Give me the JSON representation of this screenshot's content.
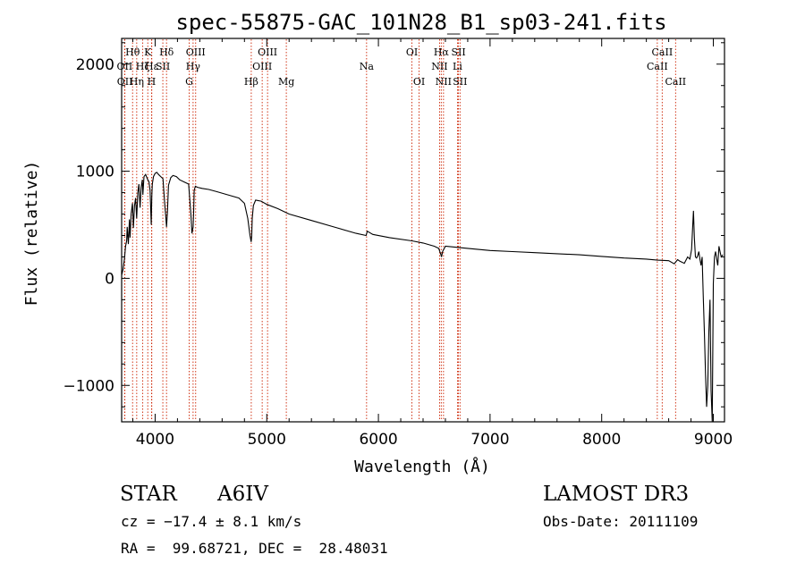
{
  "chart_data": {
    "type": "line",
    "title": "spec-55875-GAC_101N28_B1_sp03-241.fits",
    "xlabel": "Wavelength (Å)",
    "ylabel": "Flux (relative)",
    "xlim": [
      3700,
      9100
    ],
    "ylim": [
      -1340,
      2240
    ],
    "x_ticks": [
      4000,
      5000,
      6000,
      7000,
      8000,
      9000
    ],
    "y_ticks": [
      -1000,
      0,
      1000,
      2000
    ],
    "x_tick_labels": [
      "4000",
      "5000",
      "6000",
      "7000",
      "8000",
      "9000"
    ],
    "y_tick_labels": [
      "−1000",
      "0",
      "1000",
      "2000"
    ],
    "line_color": "#000000",
    "marker_color": "#cc2200",
    "series": [
      {
        "name": "flux",
        "x": [
          3700,
          3712,
          3725,
          3735,
          3745,
          3750,
          3760,
          3770,
          3775,
          3785,
          3797,
          3805,
          3815,
          3825,
          3835,
          3845,
          3855,
          3865,
          3875,
          3885,
          3890,
          3900,
          3915,
          3930,
          3945,
          3955,
          3965,
          3970,
          3975,
          3985,
          4000,
          4015,
          4030,
          4050,
          4070,
          4085,
          4095,
          4102,
          4110,
          4120,
          4140,
          4160,
          4190,
          4220,
          4260,
          4300,
          4320,
          4330,
          4340,
          4345,
          4350,
          4360,
          4380,
          4420,
          4480,
          4550,
          4650,
          4750,
          4800,
          4830,
          4850,
          4860,
          4865,
          4870,
          4880,
          4900,
          4950,
          5000,
          5100,
          5200,
          5400,
          5600,
          5800,
          5890,
          5900,
          5950,
          6100,
          6300,
          6400,
          6500,
          6540,
          6560,
          6565,
          6575,
          6600,
          6700,
          6800,
          7000,
          7200,
          7400,
          7600,
          7800,
          8000,
          8200,
          8400,
          8500,
          8600,
          8650,
          8680,
          8700,
          8740,
          8770,
          8790,
          8805,
          8815,
          8822,
          8830,
          8840,
          8850,
          8860,
          8870,
          8880,
          8890,
          8900,
          8910,
          8920,
          8930,
          8940,
          8950,
          8960,
          8970,
          8980,
          8990,
          9000,
          9010,
          9020,
          9030,
          9040,
          9050,
          9060,
          9070,
          9085
        ],
        "y": [
          30,
          80,
          180,
          300,
          350,
          480,
          320,
          550,
          380,
          600,
          700,
          470,
          680,
          750,
          560,
          800,
          880,
          660,
          850,
          920,
          780,
          950,
          970,
          930,
          900,
          820,
          500,
          760,
          880,
          950,
          980,
          990,
          970,
          950,
          930,
          700,
          580,
          480,
          620,
          870,
          940,
          960,
          950,
          920,
          900,
          880,
          600,
          420,
          480,
          620,
          820,
          860,
          850,
          840,
          830,
          810,
          780,
          750,
          700,
          560,
          400,
          340,
          390,
          560,
          680,
          730,
          720,
          690,
          650,
          600,
          540,
          480,
          420,
          400,
          440,
          410,
          380,
          350,
          330,
          300,
          280,
          220,
          200,
          250,
          300,
          290,
          280,
          260,
          250,
          240,
          230,
          220,
          205,
          190,
          180,
          170,
          165,
          135,
          175,
          160,
          140,
          200,
          180,
          270,
          480,
          630,
          380,
          200,
          190,
          210,
          250,
          180,
          120,
          200,
          -180,
          -500,
          -900,
          -1200,
          -1000,
          -500,
          -200,
          -1050,
          -1340,
          -50,
          200,
          250,
          180,
          120,
          300,
          250,
          200,
          220
        ]
      }
    ],
    "spectral_lines": [
      {
        "label": "Hθ",
        "wavelength": 3798,
        "row": 1
      },
      {
        "label": "OII",
        "wavelength": 3727,
        "row": 2
      },
      {
        "label": "OII",
        "wavelength": 3729,
        "row": 3
      },
      {
        "label": "Hζ",
        "wavelength": 3889,
        "row": 2
      },
      {
        "label": "Hη",
        "wavelength": 3835,
        "row": 3
      },
      {
        "label": "K",
        "wavelength": 3934,
        "row": 1
      },
      {
        "label": "Hε",
        "wavelength": 3970,
        "row": 2
      },
      {
        "label": "H",
        "wavelength": 3968,
        "row": 3
      },
      {
        "label": "SII",
        "wavelength": 4069,
        "row": 2
      },
      {
        "label": "Hδ",
        "wavelength": 4102,
        "row": 1
      },
      {
        "label": "OIII",
        "wavelength": 4363,
        "row": 1
      },
      {
        "label": "Hγ",
        "wavelength": 4340,
        "row": 2
      },
      {
        "label": "G",
        "wavelength": 4305,
        "row": 3
      },
      {
        "label": "Hβ",
        "wavelength": 4861,
        "row": 3
      },
      {
        "label": "OIII",
        "wavelength": 5007,
        "row": 1
      },
      {
        "label": "OIII",
        "wavelength": 4959,
        "row": 2
      },
      {
        "label": "Mg",
        "wavelength": 5175,
        "row": 3
      },
      {
        "label": "Na",
        "wavelength": 5894,
        "row": 2
      },
      {
        "label": "OI",
        "wavelength": 6300,
        "row": 1
      },
      {
        "label": "OI",
        "wavelength": 6364,
        "row": 3
      },
      {
        "label": "Hα",
        "wavelength": 6563,
        "row": 1
      },
      {
        "label": "NII",
        "wavelength": 6548,
        "row": 2
      },
      {
        "label": "NII",
        "wavelength": 6583,
        "row": 3
      },
      {
        "label": "SII",
        "wavelength": 6717,
        "row": 1
      },
      {
        "label": "Li",
        "wavelength": 6708,
        "row": 2
      },
      {
        "label": "SII",
        "wavelength": 6731,
        "row": 3
      },
      {
        "label": "CaII",
        "wavelength": 8542,
        "row": 1
      },
      {
        "label": "CaII",
        "wavelength": 8498,
        "row": 2
      },
      {
        "label": "CaII",
        "wavelength": 8662,
        "row": 3
      }
    ]
  },
  "info": {
    "object_class": "STAR",
    "subclass": "A6IV",
    "survey": "LAMOST DR3",
    "redshift_text": "cz = −17.4 ± 8.1 km/s",
    "obs_date_text": "Obs-Date: 20111109",
    "coords_text": "RA =  99.68721, DEC =  28.48031"
  }
}
